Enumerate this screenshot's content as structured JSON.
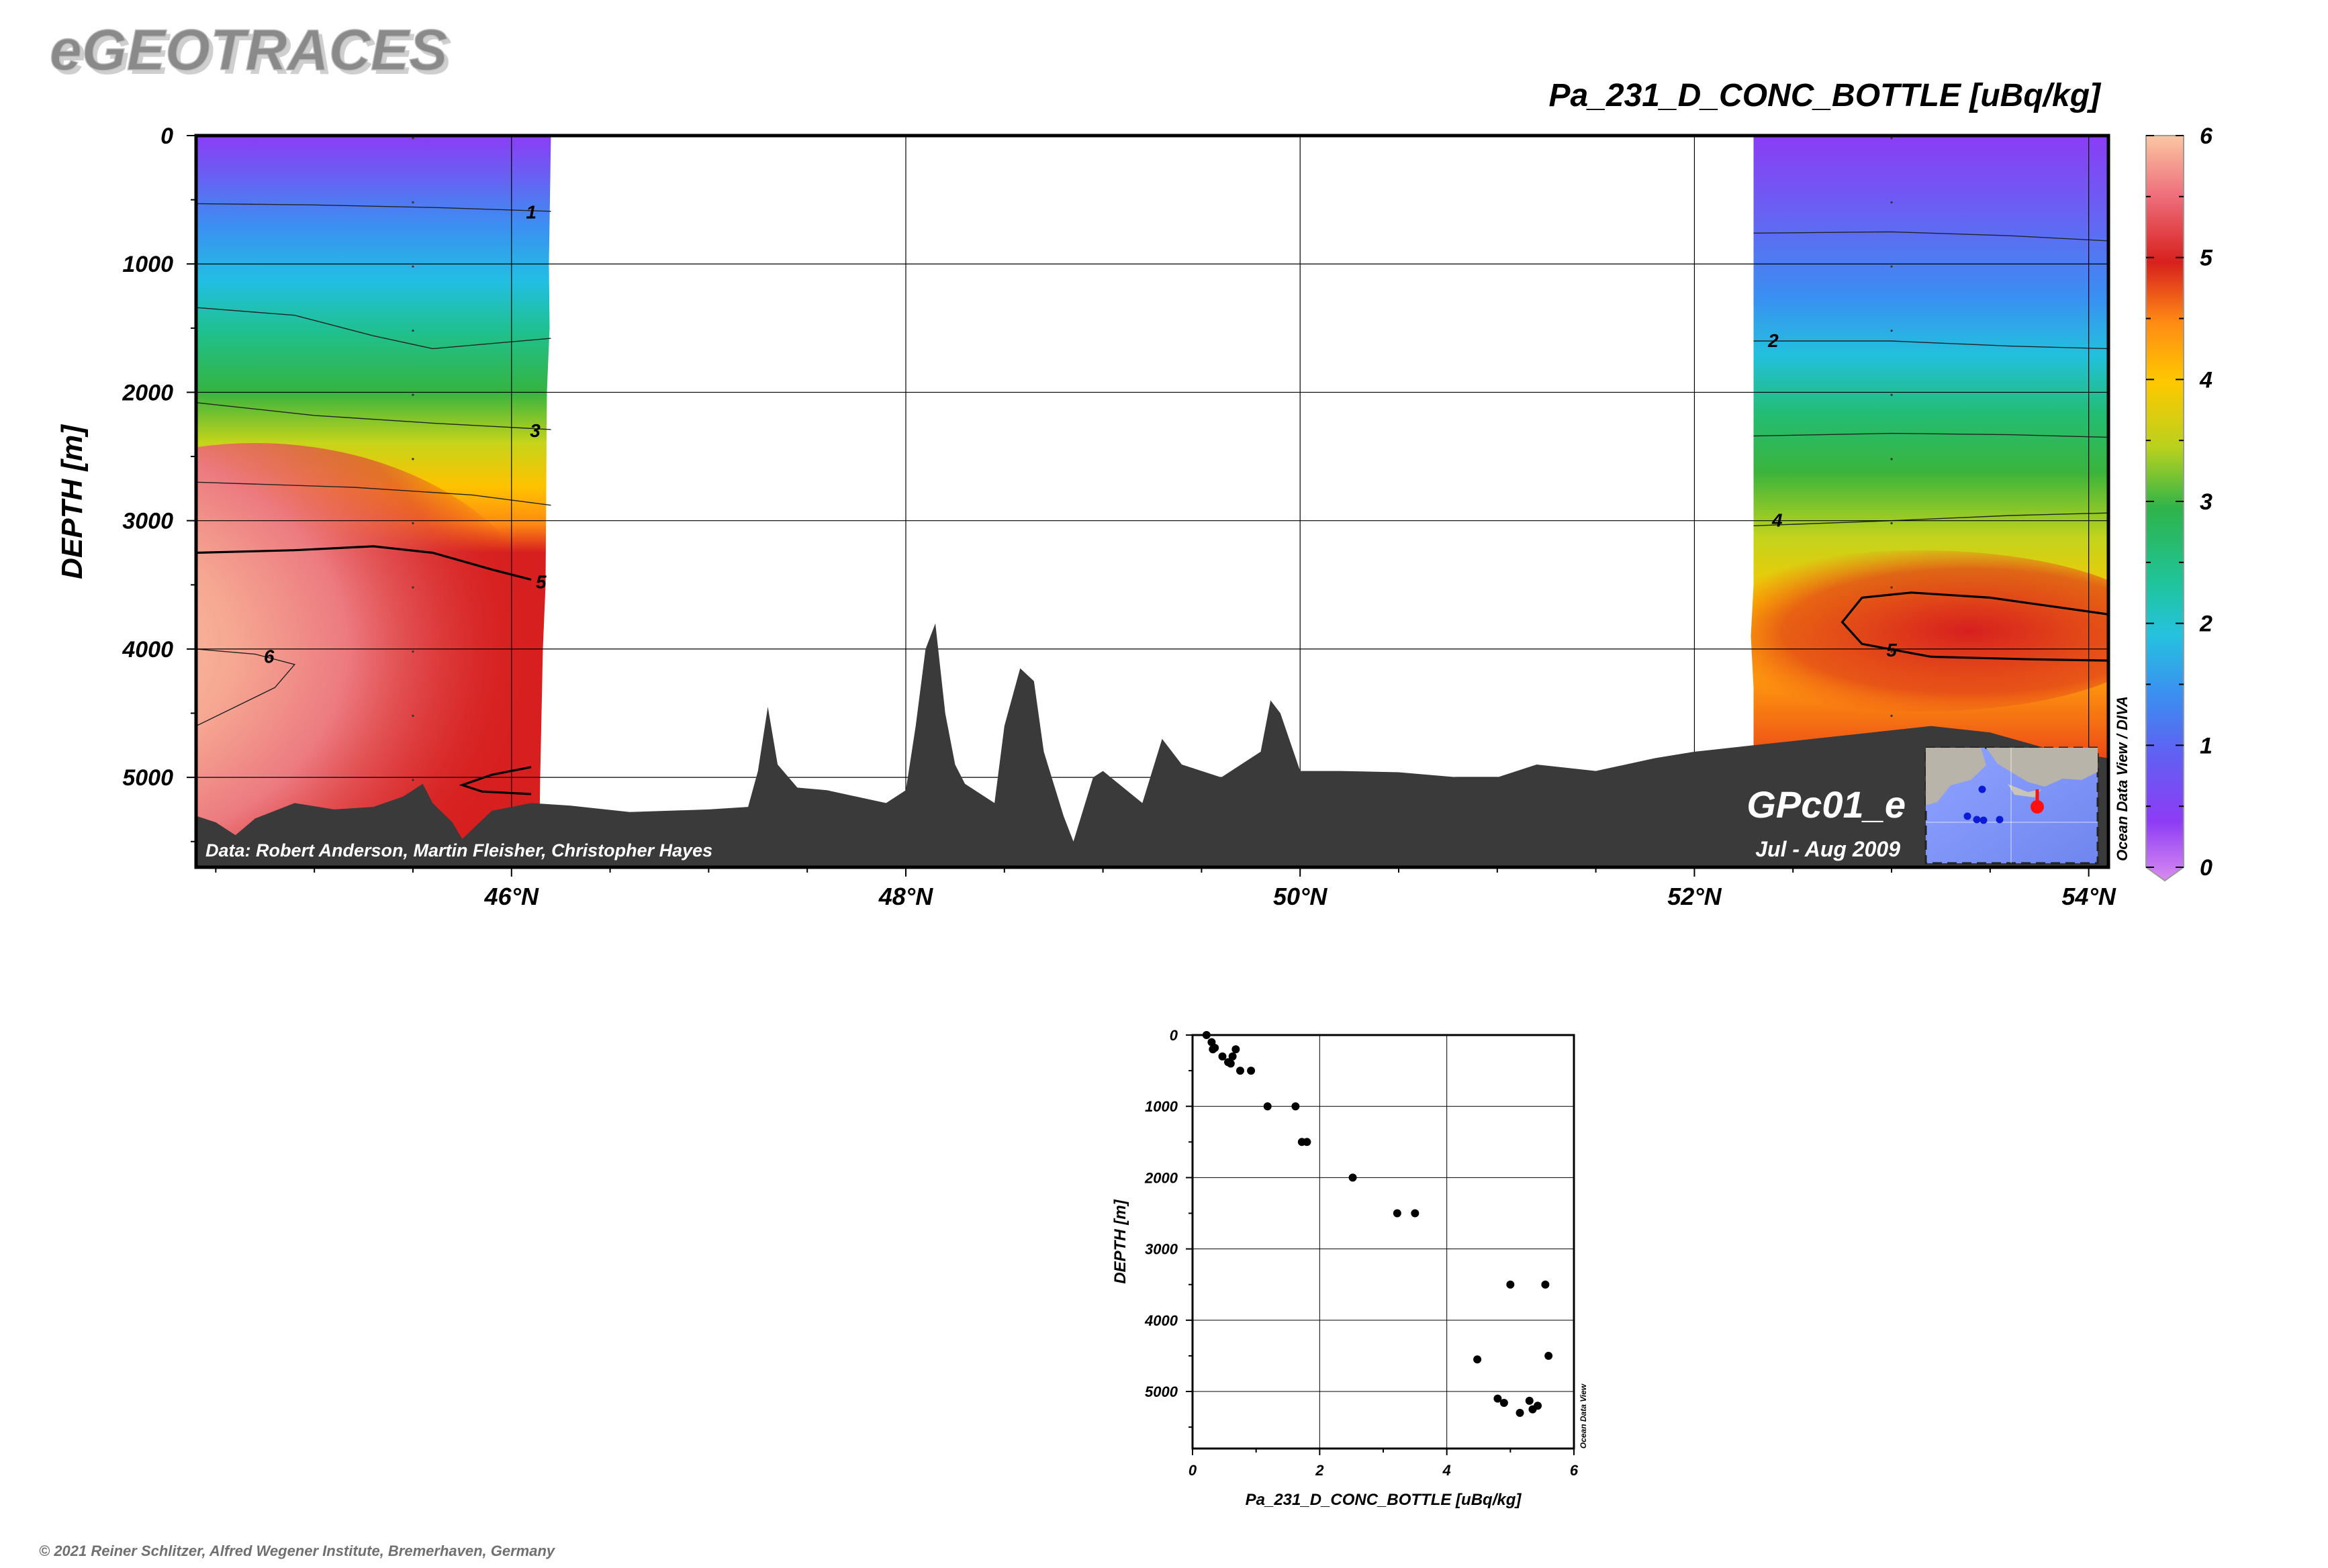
{
  "brand": "eGEOTRACES",
  "copyright": "© 2021 Reiner Schlitzer, Alfred Wegener Institute, Bremerhaven, Germany",
  "section": {
    "title": "Pa_231_D_CONC_BOTTLE [uBq/kg]",
    "ylabel": "DEPTH [m]",
    "credit": "Data: Robert Anderson, Martin Fleisher, Christopher Hayes",
    "cruise": "GPc01_e",
    "dates": "Jul - Aug 2009",
    "watermark": "Ocean Data View / DIVA",
    "y_ticks": [
      "0",
      "1000",
      "2000",
      "3000",
      "4000",
      "5000"
    ],
    "x_ticks": [
      "46°N",
      "48°N",
      "50°N",
      "52°N",
      "54°N"
    ],
    "colorbar_ticks": [
      "0",
      "1",
      "2",
      "3",
      "4",
      "5",
      "6"
    ],
    "contour_labels": [
      "1",
      "3",
      "5",
      "6",
      "2",
      "4",
      "5"
    ],
    "colors": {
      "bathymetry": "#3a3a3a",
      "frame": "#000000"
    }
  },
  "chart_data": [
    {
      "type": "heatmap",
      "title": "Pa_231_D_CONC_BOTTLE [uBq/kg]",
      "ylabel": "DEPTH [m]",
      "xlim": [
        44.4,
        54.1
      ],
      "ylim": [
        5700,
        0
      ],
      "x_ticks": [
        46,
        48,
        50,
        52,
        54
      ],
      "y_ticks": [
        0,
        1000,
        2000,
        3000,
        4000,
        5000
      ],
      "colorbar": {
        "min": 0,
        "max": 6,
        "ticks": [
          0,
          1,
          2,
          3,
          4,
          5,
          6
        ]
      },
      "contour_levels": [
        1,
        2,
        3,
        4,
        5,
        6
      ],
      "data_blocks": [
        {
          "lat_range": [
            44.4,
            46.2
          ],
          "depth_range": [
            0,
            5400
          ]
        },
        {
          "lat_range": [
            52.3,
            54.1
          ],
          "depth_range": [
            0,
            4600
          ]
        }
      ],
      "grid": true
    },
    {
      "type": "scatter",
      "title": "",
      "xlabel": "Pa_231_D_CONC_BOTTLE [uBq/kg]",
      "ylabel": "DEPTH [m]",
      "watermark": "Ocean Data View",
      "xlim": [
        0,
        6
      ],
      "ylim": [
        5800,
        0
      ],
      "x_ticks": [
        "0",
        "2",
        "4",
        "6"
      ],
      "y_ticks": [
        "0",
        "1000",
        "2000",
        "3000",
        "4000",
        "5000"
      ],
      "grid": true,
      "points": [
        {
          "x": 0.22,
          "y": 0
        },
        {
          "x": 0.3,
          "y": 100
        },
        {
          "x": 0.35,
          "y": 180
        },
        {
          "x": 0.32,
          "y": 200
        },
        {
          "x": 0.68,
          "y": 200
        },
        {
          "x": 0.47,
          "y": 300
        },
        {
          "x": 0.63,
          "y": 300
        },
        {
          "x": 0.56,
          "y": 380
        },
        {
          "x": 0.6,
          "y": 400
        },
        {
          "x": 0.75,
          "y": 500
        },
        {
          "x": 0.92,
          "y": 500
        },
        {
          "x": 1.18,
          "y": 1000
        },
        {
          "x": 1.62,
          "y": 1000
        },
        {
          "x": 1.72,
          "y": 1500
        },
        {
          "x": 1.8,
          "y": 1500
        },
        {
          "x": 2.52,
          "y": 2000
        },
        {
          "x": 3.22,
          "y": 2500
        },
        {
          "x": 3.5,
          "y": 2500
        },
        {
          "x": 5.0,
          "y": 3500
        },
        {
          "x": 5.55,
          "y": 3500
        },
        {
          "x": 4.48,
          "y": 4550
        },
        {
          "x": 5.6,
          "y": 4500
        },
        {
          "x": 4.8,
          "y": 5100
        },
        {
          "x": 4.9,
          "y": 5160
        },
        {
          "x": 5.3,
          "y": 5130
        },
        {
          "x": 5.43,
          "y": 5200
        },
        {
          "x": 5.35,
          "y": 5250
        },
        {
          "x": 5.15,
          "y": 5300
        }
      ]
    }
  ]
}
